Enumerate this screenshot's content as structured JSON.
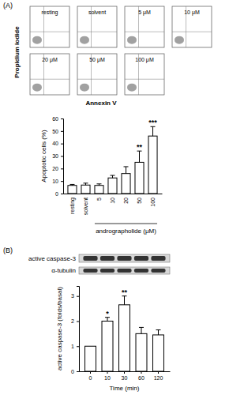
{
  "figure": {
    "panel_labels": [
      "(A)",
      "(B)"
    ],
    "flow_cytometry": {
      "x_label": "Annexin V",
      "y_label": "Propidium iodide",
      "panels": [
        "resting",
        "solvent",
        "5 μM",
        "10 μM",
        "20 μM",
        "50 μM",
        "100 μM"
      ]
    },
    "western_blot": {
      "rows": [
        "active caspase-3",
        "α-tubulin"
      ]
    }
  },
  "chart_data": [
    {
      "type": "bar",
      "categories": [
        "resting",
        "solvent",
        "5",
        "10",
        "20",
        "50",
        "100"
      ],
      "values": [
        6.5,
        6.8,
        6.5,
        12.5,
        16,
        25,
        46
      ],
      "errors": [
        0.8,
        1.5,
        1.2,
        2,
        5.5,
        9,
        7.5
      ],
      "significance": [
        null,
        null,
        null,
        null,
        null,
        "**",
        "***"
      ],
      "x_label": "andrographolide (μM)",
      "y_label": "Apoptotic cells (%)",
      "ylim": [
        0,
        60
      ],
      "yticks": [
        0,
        10,
        20,
        30,
        40,
        50,
        60
      ],
      "color": "#ffffff"
    },
    {
      "type": "bar",
      "categories": [
        "0",
        "10",
        "30",
        "60",
        "120"
      ],
      "values": [
        1,
        2.0,
        2.65,
        1.5,
        1.45
      ],
      "errors": [
        0,
        0.15,
        0.35,
        0.25,
        0.2
      ],
      "significance": [
        null,
        "*",
        "**",
        null,
        null
      ],
      "x_label": "Time (min)",
      "y_label": "active caspase-3 (folds/basal)",
      "ylim": [
        0,
        3.4
      ],
      "yticks": [
        0,
        1,
        2,
        3
      ],
      "color": "#ffffff"
    }
  ]
}
